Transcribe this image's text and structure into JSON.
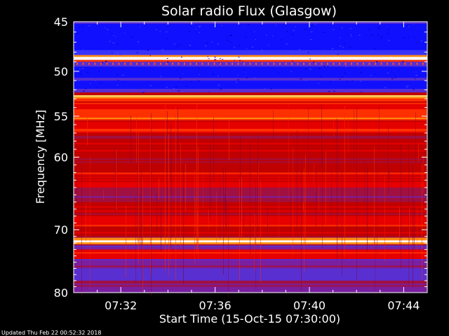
{
  "chart_data": {
    "type": "heatmap",
    "title": "Solar radio Flux (Glasgow)",
    "xlabel": "Start Time (15-Oct-15 07:30:00)",
    "ylabel": "Frequency [MHz]",
    "x_tick_labels": [
      "07:32",
      "07:36",
      "07:40",
      "07:44"
    ],
    "x_ticks_minutes": [
      2,
      6,
      10,
      14
    ],
    "xlim_minutes": [
      0,
      15
    ],
    "y_tick_labels": [
      "45",
      "50",
      "55",
      "60",
      "70",
      "80"
    ],
    "y_ticks_mhz": [
      45,
      50,
      55,
      60,
      70,
      80
    ],
    "ylim_mhz": [
      45,
      80
    ],
    "y_scale": "log",
    "colormap": [
      "#000033",
      "#1010ff",
      "#3a33ff",
      "#5a2fd0",
      "#7a1fa0",
      "#a01040",
      "#c00000",
      "#e60000",
      "#ff3000",
      "#ff8a10",
      "#ffd060",
      "#ffffff"
    ],
    "spectral_bands": [
      {
        "from_mhz": 45.0,
        "to_mhz": 45.2,
        "level": 3
      },
      {
        "from_mhz": 45.2,
        "to_mhz": 45.8,
        "level": 1
      },
      {
        "from_mhz": 45.8,
        "to_mhz": 47.8,
        "level": 1
      },
      {
        "from_mhz": 47.8,
        "to_mhz": 48.3,
        "level": 2
      },
      {
        "from_mhz": 48.3,
        "to_mhz": 48.5,
        "level": 9
      },
      {
        "from_mhz": 48.5,
        "to_mhz": 48.8,
        "level": 11
      },
      {
        "from_mhz": 48.8,
        "to_mhz": 49.0,
        "level": 8
      },
      {
        "from_mhz": 49.0,
        "to_mhz": 49.5,
        "level": 3
      },
      {
        "from_mhz": 49.5,
        "to_mhz": 50.7,
        "level": 1
      },
      {
        "from_mhz": 50.7,
        "to_mhz": 51.0,
        "level": 3
      },
      {
        "from_mhz": 51.0,
        "to_mhz": 51.9,
        "level": 1
      },
      {
        "from_mhz": 51.9,
        "to_mhz": 52.3,
        "level": 3
      },
      {
        "from_mhz": 52.3,
        "to_mhz": 52.6,
        "level": 6
      },
      {
        "from_mhz": 52.6,
        "to_mhz": 52.8,
        "level": 10
      },
      {
        "from_mhz": 52.8,
        "to_mhz": 53.3,
        "level": 8
      },
      {
        "from_mhz": 53.3,
        "to_mhz": 54.2,
        "level": 7
      },
      {
        "from_mhz": 54.2,
        "to_mhz": 55.5,
        "level": 8
      },
      {
        "from_mhz": 55.5,
        "to_mhz": 57.0,
        "level": 7
      },
      {
        "from_mhz": 57.0,
        "to_mhz": 60.0,
        "level": 6
      },
      {
        "from_mhz": 60.0,
        "to_mhz": 62.0,
        "level": 6
      },
      {
        "from_mhz": 62.0,
        "to_mhz": 64.0,
        "level": 7
      },
      {
        "from_mhz": 64.0,
        "to_mhz": 66.0,
        "level": 5
      },
      {
        "from_mhz": 66.0,
        "to_mhz": 68.0,
        "level": 6
      },
      {
        "from_mhz": 68.0,
        "to_mhz": 69.5,
        "level": 7
      },
      {
        "from_mhz": 69.5,
        "to_mhz": 71.2,
        "level": 6
      },
      {
        "from_mhz": 71.2,
        "to_mhz": 71.6,
        "level": 9
      },
      {
        "from_mhz": 71.6,
        "to_mhz": 71.9,
        "level": 11
      },
      {
        "from_mhz": 71.9,
        "to_mhz": 72.2,
        "level": 9
      },
      {
        "from_mhz": 72.2,
        "to_mhz": 73.0,
        "level": 4
      },
      {
        "from_mhz": 73.0,
        "to_mhz": 74.5,
        "level": 7
      },
      {
        "from_mhz": 74.5,
        "to_mhz": 76.0,
        "level": 4
      },
      {
        "from_mhz": 76.0,
        "to_mhz": 78.0,
        "level": 3
      },
      {
        "from_mhz": 78.0,
        "to_mhz": 79.0,
        "level": 5
      },
      {
        "from_mhz": 79.0,
        "to_mhz": 80.0,
        "level": 4
      }
    ],
    "grid": false
  },
  "footer": {
    "updated": "Updated Thu Feb 22 00:52:32 2018"
  },
  "colors": {
    "background": "#000000",
    "text": "#ffffff"
  }
}
